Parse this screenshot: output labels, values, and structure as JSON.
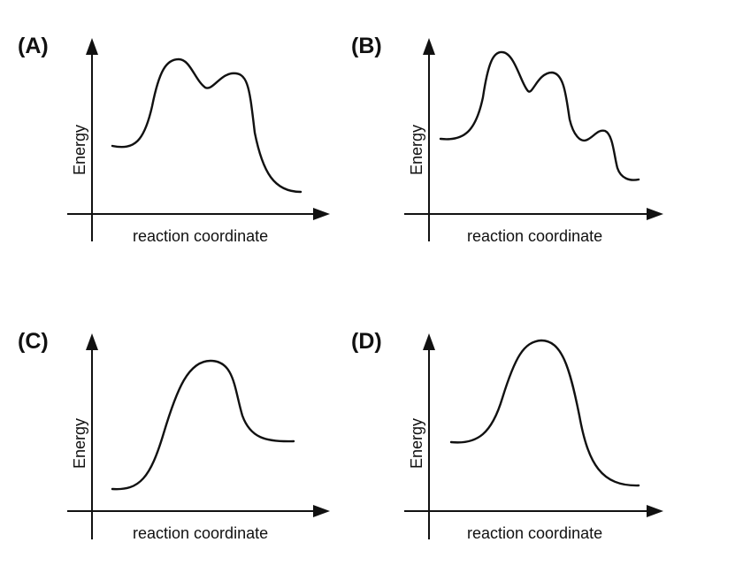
{
  "panels": [
    {
      "label": "(A)",
      "xlabel": "reaction coordinate",
      "ylabel": "Energy",
      "curve": "two intermediate barriers, products lower than reactants"
    },
    {
      "label": "(B)",
      "xlabel": "reaction coordinate",
      "ylabel": "Energy",
      "curve": "three barriers, products lower than reactants"
    },
    {
      "label": "(C)",
      "xlabel": "reaction coordinate",
      "ylabel": "Energy",
      "curve": "single barrier, products higher than reactants"
    },
    {
      "label": "(D)",
      "xlabel": "reaction coordinate",
      "ylabel": "Energy",
      "curve": "single barrier, products lower than reactants"
    }
  ]
}
